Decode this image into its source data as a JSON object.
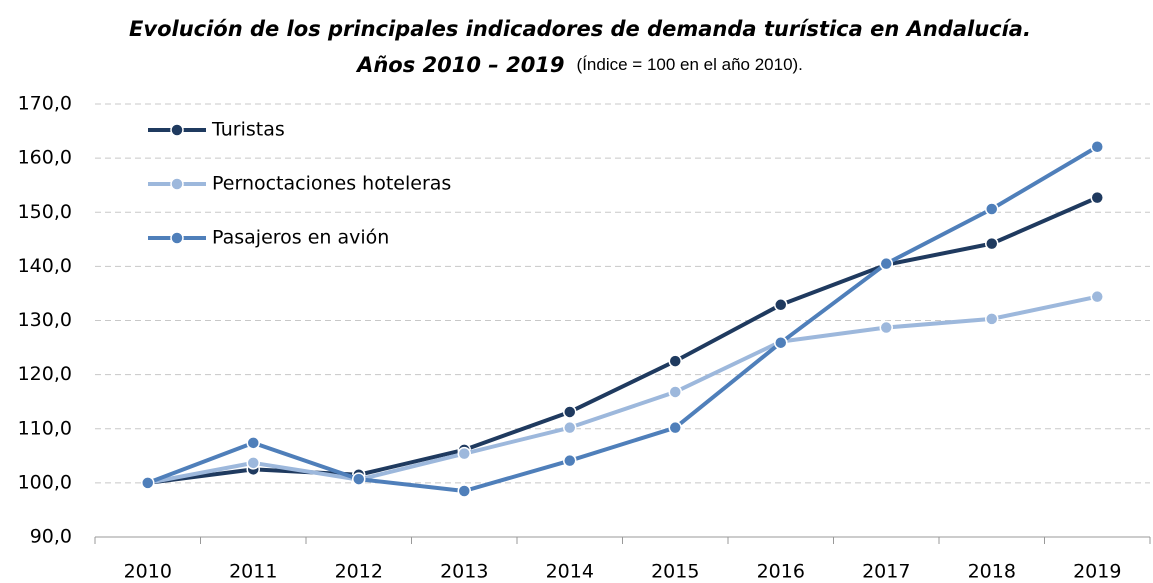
{
  "chart_data": {
    "type": "line",
    "title": "Evolución de los principales indicadores de demanda turística en Andalucía.",
    "title_line2": "Años 2010 – 2019",
    "subtitle": "(Índice = 100 en el año 2010).",
    "categories": [
      "2010",
      "2011",
      "2012",
      "2013",
      "2014",
      "2015",
      "2016",
      "2017",
      "2018",
      "2019"
    ],
    "series": [
      {
        "name": "Turistas",
        "color": "#1f3a5f",
        "values": [
          100,
          102.5,
          101.5,
          106.1,
          113.1,
          122.5,
          132.9,
          140.3,
          144.2,
          152.7
        ]
      },
      {
        "name": "Pernoctaciones hoteleras",
        "color": "#9db8dc",
        "values": [
          100,
          103.7,
          100.6,
          105.4,
          110.2,
          116.8,
          126.1,
          128.7,
          130.3,
          134.4
        ]
      },
      {
        "name": "Pasajeros en avión",
        "color": "#4f7fba",
        "values": [
          100,
          107.4,
          100.7,
          98.5,
          104.1,
          110.2,
          125.9,
          140.5,
          150.6,
          162.1
        ]
      }
    ],
    "ylim": [
      90,
      170
    ],
    "yticks": [
      {
        "value": 90,
        "label": "90,0"
      },
      {
        "value": 100,
        "label": "100,0"
      },
      {
        "value": 110,
        "label": "110,0"
      },
      {
        "value": 120,
        "label": "120,0"
      },
      {
        "value": 130,
        "label": "130,0"
      },
      {
        "value": 140,
        "label": "140,0"
      },
      {
        "value": 150,
        "label": "150,0"
      },
      {
        "value": 160,
        "label": "160,0"
      },
      {
        "value": 170,
        "label": "170,0"
      }
    ],
    "grid": true,
    "legend": "upper left"
  }
}
